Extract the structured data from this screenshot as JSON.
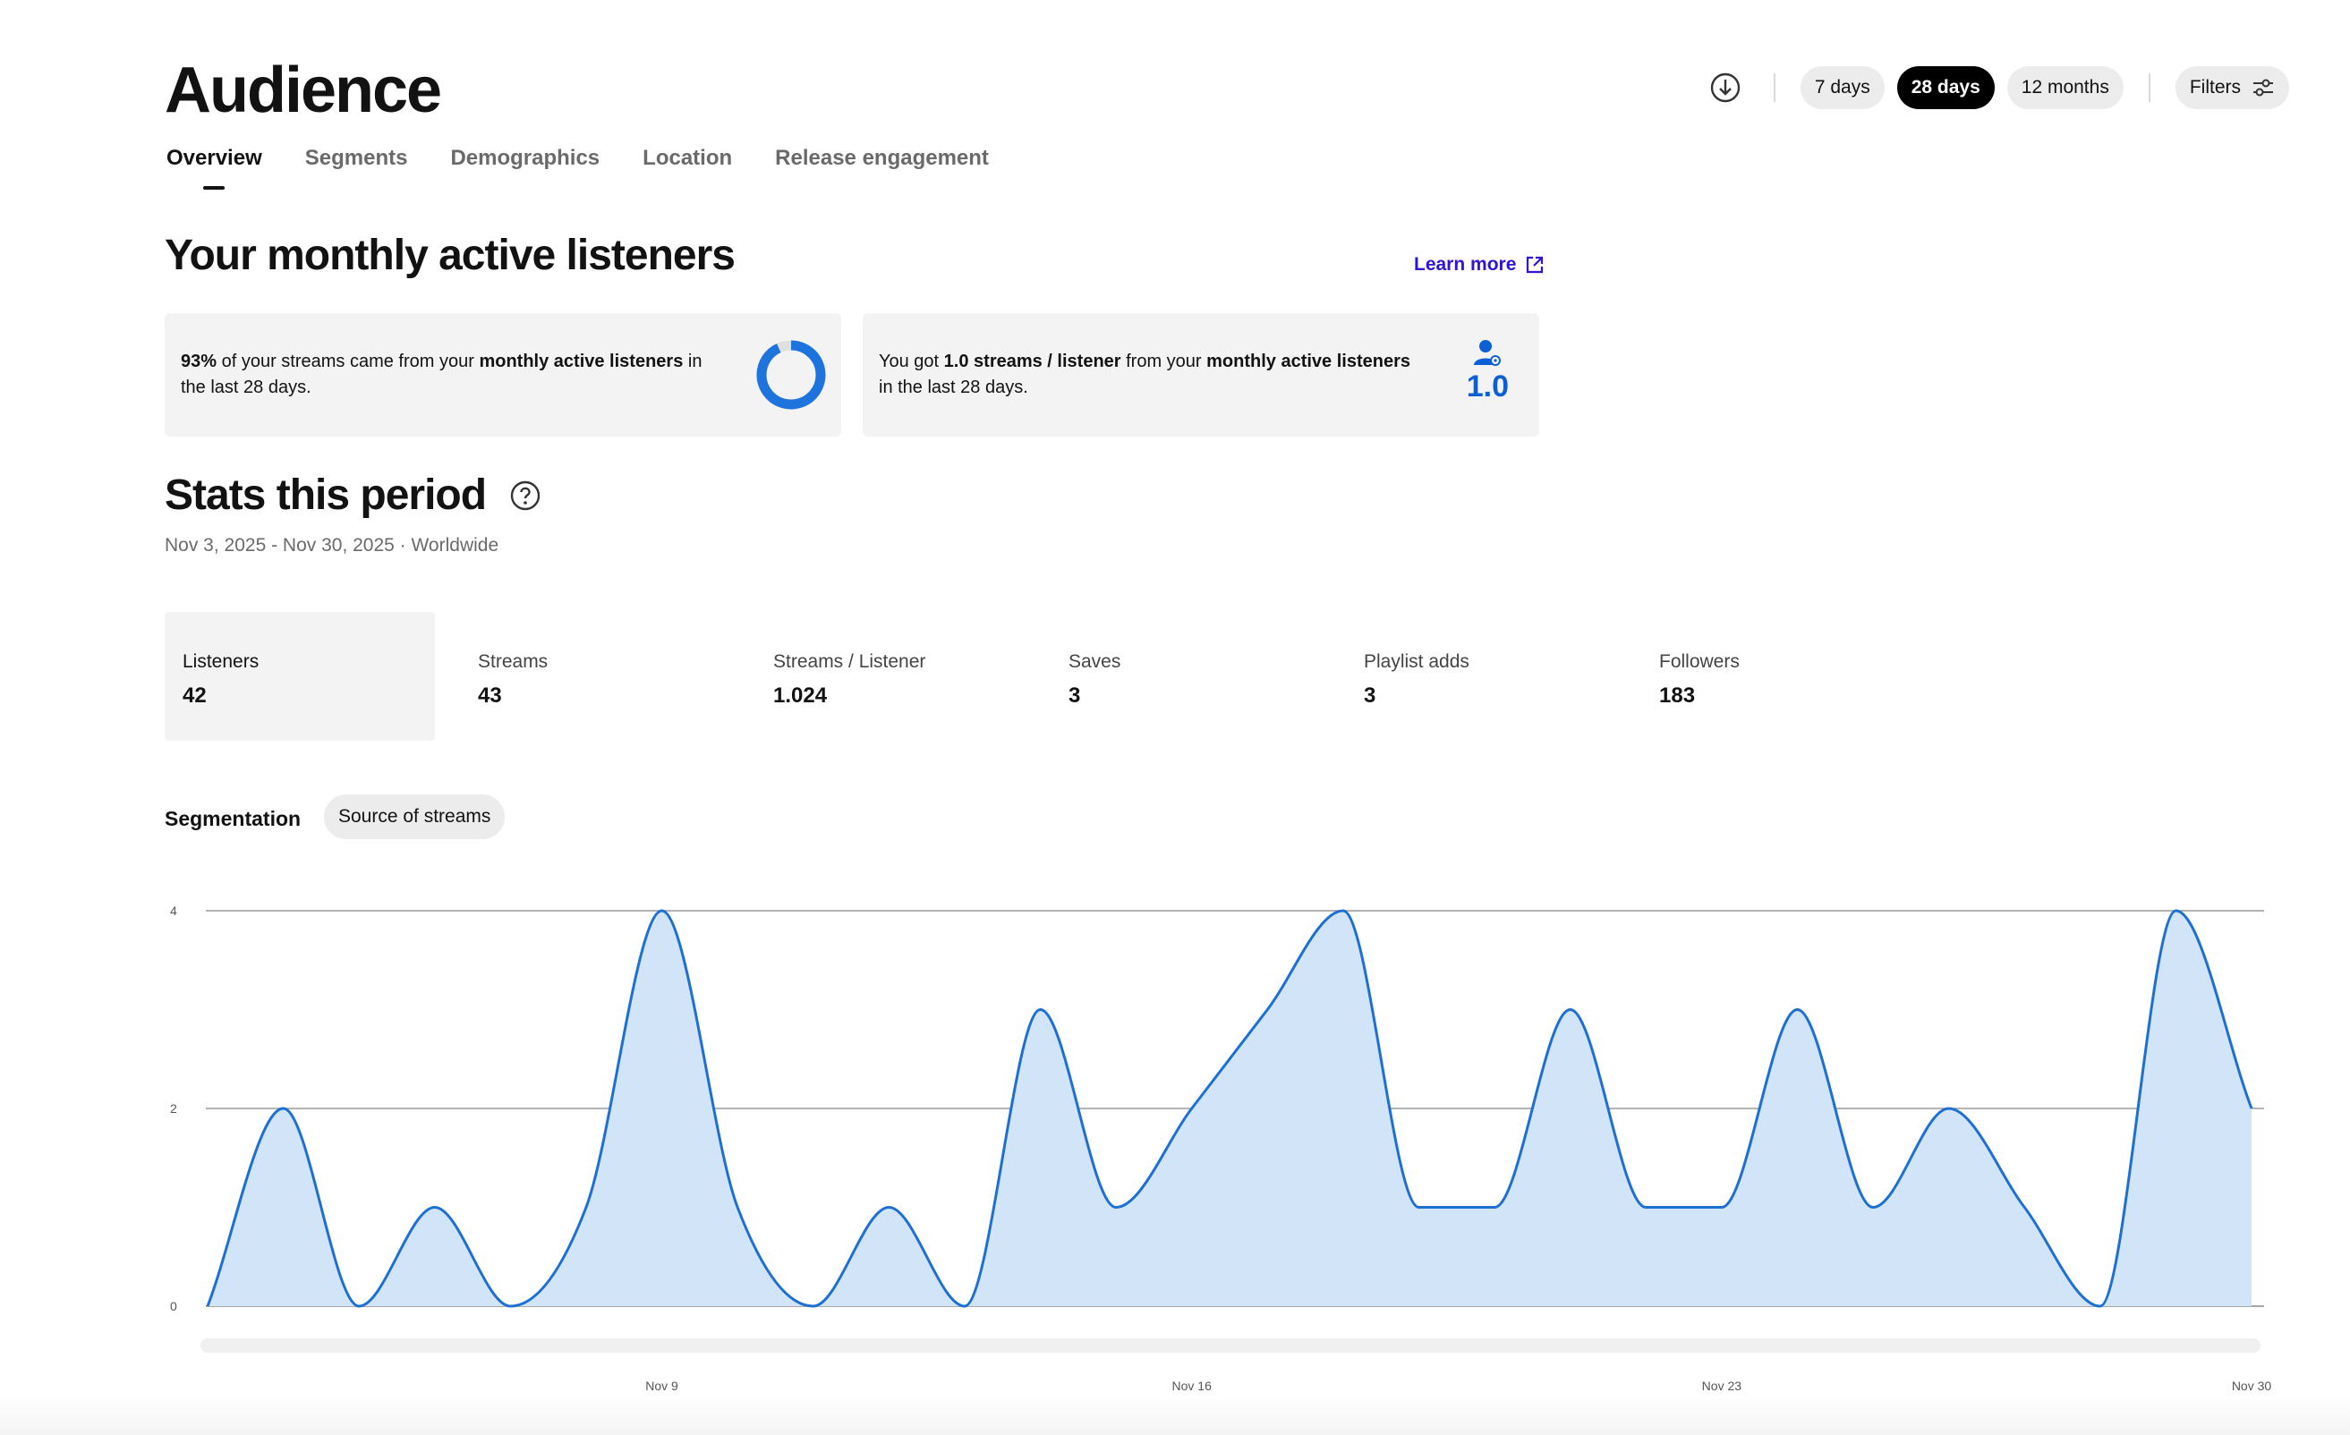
{
  "header": {
    "title": "Audience",
    "tabs": [
      {
        "label": "Overview",
        "active": true
      },
      {
        "label": "Segments"
      },
      {
        "label": "Demographics"
      },
      {
        "label": "Location"
      },
      {
        "label": "Release engagement"
      }
    ]
  },
  "toolbar": {
    "download_icon": "download-icon",
    "ranges": [
      {
        "label": "7 days"
      },
      {
        "label": "28 days",
        "active": true
      },
      {
        "label": "12 months"
      }
    ],
    "filters_label": "Filters",
    "filters_icon": "sliders-icon"
  },
  "monthly": {
    "title": "Your monthly active listeners",
    "learn_more": "Learn more",
    "card_streams": {
      "percent": "93%",
      "text1": " of your streams came from your ",
      "bold": "monthly active listeners",
      "text2": " in the last 28 days.",
      "donut_fraction": 0.93
    },
    "card_ratio": {
      "text1": "You got ",
      "bold1": "1.0 streams / listener",
      "text2": " from your ",
      "bold2": "monthly active listeners",
      "text3": " in the last 28 days.",
      "value": "1.0"
    }
  },
  "stats": {
    "title": "Stats this period",
    "subtitle": "Nov 3, 2025 - Nov 30, 2025 · Worldwide",
    "metrics": [
      {
        "label": "Listeners",
        "value": "42",
        "selected": true
      },
      {
        "label": "Streams",
        "value": "43"
      },
      {
        "label": "Streams / Listener",
        "value": "1.024"
      },
      {
        "label": "Saves",
        "value": "3"
      },
      {
        "label": "Playlist adds",
        "value": "3"
      },
      {
        "label": "Followers",
        "value": "183"
      }
    ]
  },
  "segmentation": {
    "label": "Segmentation",
    "pill": "Source of streams"
  },
  "chart_data": {
    "type": "area",
    "x": [
      "Nov 3",
      "Nov 4",
      "Nov 5",
      "Nov 6",
      "Nov 7",
      "Nov 8",
      "Nov 9",
      "Nov 10",
      "Nov 11",
      "Nov 12",
      "Nov 13",
      "Nov 14",
      "Nov 15",
      "Nov 16",
      "Nov 17",
      "Nov 18",
      "Nov 19",
      "Nov 20",
      "Nov 21",
      "Nov 22",
      "Nov 23",
      "Nov 24",
      "Nov 25",
      "Nov 26",
      "Nov 27",
      "Nov 28",
      "Nov 29",
      "Nov 30"
    ],
    "values": [
      0,
      2,
      0,
      1,
      0,
      1,
      4,
      1,
      0,
      1,
      0,
      3,
      1,
      2,
      3,
      4,
      1,
      1,
      3,
      1,
      1,
      3,
      1,
      2,
      1,
      0,
      4,
      2
    ],
    "x_ticks": [
      "Nov 9",
      "Nov 16",
      "Nov 23",
      "Nov 30"
    ],
    "y_ticks": [
      0,
      2,
      4
    ],
    "ylim": [
      0,
      4
    ],
    "grid": true,
    "line_color": "#1e6fd2",
    "fill_color": "#d2e4f8"
  }
}
